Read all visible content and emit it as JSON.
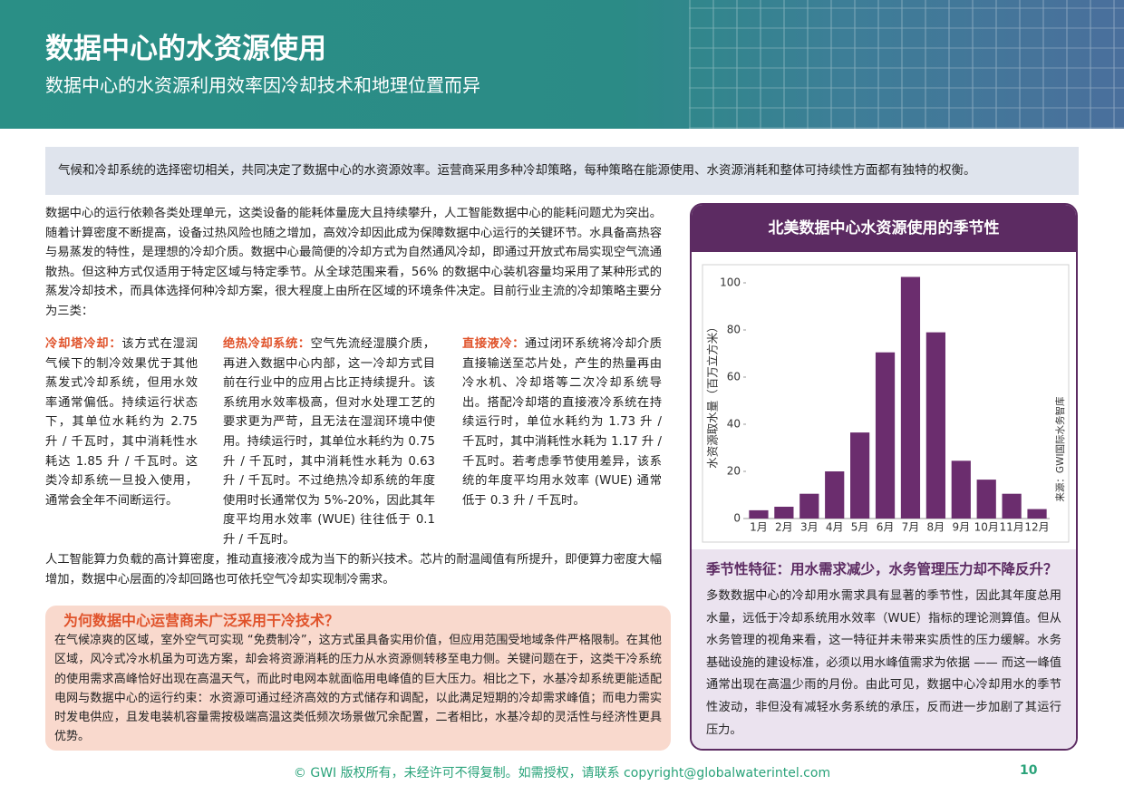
{
  "header": {
    "title": "数据中心的水资源使用",
    "subtitle": "数据中心的水资源利用效率因冷却技术和地理位置而异"
  },
  "intro": "气候和冷却系统的选择密切相关，共同决定了数据中心的水资源效率。运营商采用多种冷却策略，每种策略在能源使用、水资源消耗和整体可持续性方面都有独特的权衡。",
  "body": [
    "数据中心的运行依赖各类处理单元，这类设备的能耗体量庞大且持续攀升，人工智能数据中心的能耗问题尤为突出。随着计算密度不断提高，设备过热风险也随之增加，高效冷却因此成为保障数据中心运行的关键环节。水具备高热容与易蒸发的特性，是理想的冷却介质。数据中心最简便的冷却方式为自然通风冷却，即通过开放式布局实现空气流通散热。但这种方式仅适用于特定区域与特定季节。从全球范围来看，56% 的数据中心装机容量均采用了某种形式的蒸发冷却技术，而具体选择何种冷却方案，很大程度上由所在区域的环境条件决定。目前行业主流的冷却策略主要分为三类：",
    "人工智能算力负载的高计算密度，推动直接液冷成为当下的新兴技术。芯片的耐温阈值有所提升，即便算力密度大幅增加，数据中心层面的冷却回路也可依托空气冷却实现制冷需求。"
  ],
  "columns": [
    {
      "heading": "冷却塔冷却：",
      "text": "该方式在湿润气候下的制冷效果优于其他蒸发式冷却系统，但用水效率通常偏低。持续运行状态下，其单位水耗约为 2.75 升 / 千瓦时，其中消耗性水耗达 1.85 升 / 千瓦时。这类冷却系统一旦投入使用，通常会全年不间断运行。"
    },
    {
      "heading": "绝热冷却系统：",
      "text": "空气先流经湿膜介质，再进入数据中心内部，这一冷却方式目前在行业中的应用占比正持续提升。该系统用水效率极高，但对水处理工艺的要求更为严苛，且无法在湿润环境中使用。持续运行时，其单位水耗约为 0.75 升 / 千瓦时，其中消耗性水耗为 0.63 升 / 千瓦时。不过绝热冷却系统的年度使用时长通常仅为 5%-20%，因此其年度平均用水效率 (WUE) 往往低于 0.1 升 / 千瓦时。"
    },
    {
      "heading": "直接液冷：",
      "text": "通过闭环系统将冷却介质直接输送至芯片处，产生的热量再由冷水机、冷却塔等二次冷却系统导出。搭配冷却塔的直接液冷系统在持续运行时，单位水耗约为 1.73 升 / 千瓦时，其中消耗性水耗为 1.17 升 / 千瓦时。若考虑季节使用差异，该系统的年度平均用水效率 (WUE) 通常低于 0.3 升 / 千瓦时。"
    }
  ],
  "box": {
    "title": "为何数据中心运营商未广泛采用干冷技术？",
    "text": "在气候凉爽的区域，室外空气可实现 “免费制冷”，这方式虽具备实用价值，但应用范围受地域条件严格限制。在其他区域，风冷式冷水机虽为可选方案，却会将资源消耗的压力从水资源侧转移至电力侧。关键问题在于，这类干冷系统的使用需求高峰恰好出现在高温天气，而此时电网本就面临用电峰值的巨大压力。相比之下，水基冷却系统更能适配电网与数据中心的运行约束：水资源可通过经济高效的方式储存和调配，以此满足短期的冷却需求峰值；而电力需实时发电供应，且发电装机容量需按极端高温这类低频次场景做冗余配置，二者相比，水基冷却的灵活性与经济性更具优势。"
  },
  "chart_data": {
    "type": "bar",
    "title": "北美数据中心水资源使用的季节性",
    "y_label": "水资源取水量（百万立方米）",
    "source": "来源：GWI国际水务智库",
    "categories": [
      "1月",
      "2月",
      "3月",
      "4月",
      "5月",
      "6月",
      "7月",
      "8月",
      "9月",
      "10月",
      "11月",
      "12月"
    ],
    "values": [
      3.5,
      5,
      10.5,
      20,
      36.5,
      70.5,
      102.5,
      79,
      24.5,
      16.5,
      10.5,
      4
    ],
    "color": "#6b2d6e",
    "ylim": [
      0,
      105
    ],
    "yticks": [
      0,
      20,
      40,
      60,
      80,
      100
    ],
    "grid": false
  },
  "sidebar": {
    "title": "季节性特征：用水需求减少，水务管理压力却不降反升？",
    "text": "多数数据中心的冷却用水需求具有显著的季节性，因此其年度总用水量，远低于冷却系统用水效率（WUE）指标的理论测算值。但从水务管理的视角来看，这一特征并未带来实质性的压力缓解。水务基础设施的建设标准，必须以用水峰值需求为依据 —— 而这一峰值通常出现在高温少雨的月份。由此可见，数据中心冷却用水的季节性波动，非但没有减轻水务系统的承压，反而进一步加剧了其运行压力。"
  },
  "footer": {
    "copyright": "© GWI 版权所有，未经许可不得复制。如需授权，请联系 copyright@globalwaterintel.com",
    "page": "10"
  }
}
